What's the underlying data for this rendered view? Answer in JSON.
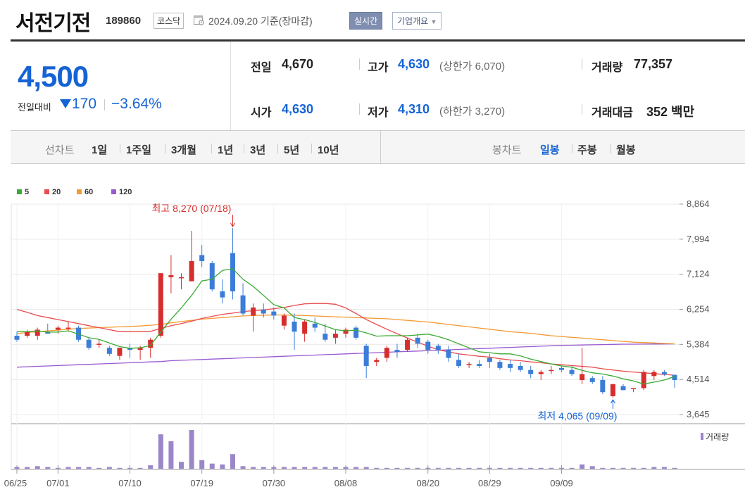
{
  "header": {
    "name": "서전기전",
    "code": "189860",
    "market": "코스닥",
    "date": "2024.09.20 기준(장마감)",
    "realtime": "실시간",
    "company_info": "기업개요"
  },
  "quote": {
    "price": "4,500",
    "change_label": "전일대비",
    "change": "170",
    "change_pct": "−3.64%",
    "prev_close_label": "전일",
    "prev_close": "4,670",
    "high_label": "고가",
    "high": "4,630",
    "upper_limit": "(상한가 6,070)",
    "volume_label": "거래량",
    "volume": "77,357",
    "open_label": "시가",
    "open": "4,630",
    "low_label": "저가",
    "low": "4,310",
    "lower_limit": "(하한가 3,270)",
    "amount_label": "거래대금",
    "amount": "352 백만"
  },
  "periods": {
    "line_label": "선차트",
    "line": [
      "1일",
      "1주일",
      "3개월",
      "1년",
      "3년",
      "5년",
      "10년"
    ],
    "candle_label": "봉차트",
    "candle": [
      "일봉",
      "주봉",
      "월봉"
    ],
    "candle_active": "일봉"
  },
  "colors": {
    "up": "#d62d2d",
    "down": "#3b7dd8",
    "ma5": "#3aaa35",
    "ma20": "#e84c4c",
    "ma60": "#f39a33",
    "ma120": "#9b59d0"
  },
  "chart_data": {
    "type": "candlestick",
    "legend": [
      {
        "name": "5",
        "color": "#3aaa35"
      },
      {
        "name": "20",
        "color": "#e84c4c"
      },
      {
        "name": "60",
        "color": "#f39a33"
      },
      {
        "name": "120",
        "color": "#9b59d0"
      }
    ],
    "y_ticks": [
      "8,864",
      "7,994",
      "7,124",
      "6,254",
      "5,384",
      "4,514",
      "3,645"
    ],
    "ylim": [
      3645,
      8864
    ],
    "x_ticks": [
      "06/25",
      "07/01",
      "07/10",
      "07/19",
      "07/30",
      "08/08",
      "08/20",
      "08/29",
      "09/09"
    ],
    "high_annotation": "최고 8,270 (07/18)",
    "low_annotation": "최저 4,065 (09/09)",
    "volume_label": "거래량",
    "candles": [
      {
        "o": 5600,
        "h": 5700,
        "l": 5450,
        "c": 5500
      },
      {
        "o": 5600,
        "h": 5750,
        "l": 5550,
        "c": 5700
      },
      {
        "o": 5600,
        "h": 5800,
        "l": 5500,
        "c": 5750
      },
      {
        "o": 5700,
        "h": 5900,
        "l": 5650,
        "c": 5650
      },
      {
        "o": 5750,
        "h": 5850,
        "l": 5650,
        "c": 5800
      },
      {
        "o": 5800,
        "h": 5950,
        "l": 5700,
        "c": 5800
      },
      {
        "o": 5800,
        "h": 5850,
        "l": 5450,
        "c": 5500
      },
      {
        "o": 5500,
        "h": 5550,
        "l": 5250,
        "c": 5300
      },
      {
        "o": 5400,
        "h": 5500,
        "l": 5300,
        "c": 5400
      },
      {
        "o": 5300,
        "h": 5350,
        "l": 5100,
        "c": 5150
      },
      {
        "o": 5100,
        "h": 5300,
        "l": 5000,
        "c": 5300
      },
      {
        "o": 5300,
        "h": 5400,
        "l": 5050,
        "c": 5250
      },
      {
        "o": 5250,
        "h": 5350,
        "l": 5000,
        "c": 5300
      },
      {
        "o": 5300,
        "h": 5550,
        "l": 5050,
        "c": 5500
      },
      {
        "o": 5600,
        "h": 7150,
        "l": 5550,
        "c": 7150
      },
      {
        "o": 7050,
        "h": 7600,
        "l": 6650,
        "c": 7100
      },
      {
        "o": 7050,
        "h": 7150,
        "l": 6750,
        "c": 7050
      },
      {
        "o": 6950,
        "h": 8200,
        "l": 6950,
        "c": 7450
      },
      {
        "o": 7600,
        "h": 7850,
        "l": 7300,
        "c": 7450
      },
      {
        "o": 7400,
        "h": 7450,
        "l": 6700,
        "c": 6750
      },
      {
        "o": 6700,
        "h": 7000,
        "l": 6400,
        "c": 6550
      },
      {
        "o": 7650,
        "h": 8270,
        "l": 6500,
        "c": 6700
      },
      {
        "o": 6600,
        "h": 6900,
        "l": 6100,
        "c": 6150
      },
      {
        "o": 6100,
        "h": 6400,
        "l": 5700,
        "c": 6300
      },
      {
        "o": 6250,
        "h": 6400,
        "l": 6050,
        "c": 6150
      },
      {
        "o": 6200,
        "h": 6300,
        "l": 6000,
        "c": 6100
      },
      {
        "o": 5850,
        "h": 6150,
        "l": 5750,
        "c": 6100
      },
      {
        "o": 5950,
        "h": 6150,
        "l": 5250,
        "c": 5700
      },
      {
        "o": 5650,
        "h": 6000,
        "l": 5450,
        "c": 5950
      },
      {
        "o": 5900,
        "h": 6050,
        "l": 5700,
        "c": 5800
      },
      {
        "o": 5650,
        "h": 5900,
        "l": 5450,
        "c": 5500
      },
      {
        "o": 5550,
        "h": 5750,
        "l": 5400,
        "c": 5650
      },
      {
        "o": 5650,
        "h": 5800,
        "l": 5550,
        "c": 5750
      },
      {
        "o": 5800,
        "h": 5850,
        "l": 5500,
        "c": 5550
      },
      {
        "o": 5350,
        "h": 5400,
        "l": 4550,
        "c": 4850
      },
      {
        "o": 4950,
        "h": 5050,
        "l": 4850,
        "c": 5000
      },
      {
        "o": 5050,
        "h": 5350,
        "l": 4950,
        "c": 5300
      },
      {
        "o": 5250,
        "h": 5400,
        "l": 5050,
        "c": 5200
      },
      {
        "o": 5250,
        "h": 5550,
        "l": 5200,
        "c": 5500
      },
      {
        "o": 5550,
        "h": 5650,
        "l": 5300,
        "c": 5400
      },
      {
        "o": 5450,
        "h": 5500,
        "l": 5150,
        "c": 5250
      },
      {
        "o": 5350,
        "h": 5400,
        "l": 5150,
        "c": 5250
      },
      {
        "o": 5250,
        "h": 5350,
        "l": 4950,
        "c": 5050
      },
      {
        "o": 5000,
        "h": 5150,
        "l": 4800,
        "c": 4850
      },
      {
        "o": 4900,
        "h": 4950,
        "l": 4800,
        "c": 4900
      },
      {
        "o": 4900,
        "h": 5000,
        "l": 4800,
        "c": 4850
      },
      {
        "o": 5050,
        "h": 5150,
        "l": 4800,
        "c": 4950
      },
      {
        "o": 4950,
        "h": 5000,
        "l": 4750,
        "c": 4800
      },
      {
        "o": 4900,
        "h": 5000,
        "l": 4700,
        "c": 4800
      },
      {
        "o": 4850,
        "h": 4950,
        "l": 4700,
        "c": 4750
      },
      {
        "o": 4750,
        "h": 4850,
        "l": 4550,
        "c": 4650
      },
      {
        "o": 4650,
        "h": 4750,
        "l": 4500,
        "c": 4700
      },
      {
        "o": 4750,
        "h": 4850,
        "l": 4650,
        "c": 4750
      },
      {
        "o": 4800,
        "h": 4850,
        "l": 4700,
        "c": 4750
      },
      {
        "o": 4750,
        "h": 4850,
        "l": 4600,
        "c": 4650
      },
      {
        "o": 4500,
        "h": 5300,
        "l": 4400,
        "c": 4650
      },
      {
        "o": 4550,
        "h": 4600,
        "l": 4400,
        "c": 4450
      },
      {
        "o": 4500,
        "h": 4600,
        "l": 4150,
        "c": 4200
      },
      {
        "o": 4100,
        "h": 4400,
        "l": 4065,
        "c": 4400
      },
      {
        "o": 4350,
        "h": 4400,
        "l": 4250,
        "c": 4250
      },
      {
        "o": 4300,
        "h": 4300,
        "l": 4200,
        "c": 4300
      },
      {
        "o": 4300,
        "h": 4750,
        "l": 4250,
        "c": 4700
      },
      {
        "o": 4600,
        "h": 4750,
        "l": 4500,
        "c": 4700
      },
      {
        "o": 4700,
        "h": 4750,
        "l": 4600,
        "c": 4650
      },
      {
        "o": 4630,
        "h": 4630,
        "l": 4310,
        "c": 4500
      }
    ],
    "ma5": [
      5700,
      5700,
      5720,
      5690,
      5690,
      5720,
      5640,
      5550,
      5510,
      5420,
      5330,
      5290,
      5300,
      5360,
      5690,
      6010,
      6290,
      6600,
      6960,
      7000,
      7220,
      7260,
      7000,
      6820,
      6600,
      6370,
      6290,
      6050,
      6000,
      5930,
      5840,
      5750,
      5720,
      5740,
      5670,
      5590,
      5600,
      5600,
      5600,
      5620,
      5640,
      5580,
      5500,
      5400,
      5300,
      5200,
      5180,
      5150,
      5150,
      5100,
      5020,
      4960,
      4900,
      4850,
      4820,
      4740,
      4680,
      4650,
      4600,
      4530,
      4480,
      4400,
      4450,
      4500,
      4590
    ],
    "ma20": [
      6250,
      6180,
      6100,
      6050,
      6000,
      5950,
      5900,
      5850,
      5800,
      5750,
      5700,
      5700,
      5700,
      5710,
      5780,
      5850,
      5900,
      5960,
      6030,
      6080,
      6130,
      6160,
      6200,
      6220,
      6240,
      6270,
      6300,
      6350,
      6390,
      6400,
      6400,
      6380,
      6290,
      6150,
      6000,
      5880,
      5760,
      5650,
      5540,
      5440,
      5340,
      5250,
      5200,
      5150,
      5120,
      5090,
      5070,
      5030,
      5000,
      4980,
      4950,
      4930,
      4900,
      4880,
      4860,
      4840,
      4820,
      4780,
      4750,
      4720,
      4700,
      4680,
      4660,
      4640,
      4620
    ],
    "ma60": [
      5650,
      5680,
      5700,
      5720,
      5740,
      5760,
      5780,
      5790,
      5800,
      5810,
      5820,
      5830,
      5840,
      5860,
      5880,
      5920,
      5950,
      5980,
      6010,
      6030,
      6050,
      6070,
      6090,
      6100,
      6110,
      6115,
      6115,
      6110,
      6100,
      6090,
      6080,
      6070,
      6060,
      6050,
      6040,
      6030,
      6020,
      6000,
      5980,
      5960,
      5940,
      5910,
      5880,
      5850,
      5820,
      5790,
      5760,
      5730,
      5700,
      5680,
      5660,
      5630,
      5600,
      5580,
      5560,
      5540,
      5520,
      5500,
      5480,
      5460,
      5440,
      5430,
      5420,
      5410,
      5400
    ],
    "ma120": [
      4820,
      4830,
      4840,
      4850,
      4860,
      4870,
      4880,
      4890,
      4900,
      4910,
      4920,
      4930,
      4940,
      4950,
      4960,
      4980,
      4990,
      5000,
      5010,
      5020,
      5030,
      5040,
      5050,
      5060,
      5070,
      5080,
      5090,
      5100,
      5110,
      5120,
      5130,
      5140,
      5150,
      5160,
      5170,
      5180,
      5190,
      5200,
      5210,
      5220,
      5230,
      5240,
      5250,
      5260,
      5270,
      5280,
      5290,
      5300,
      5310,
      5320,
      5330,
      5340,
      5350,
      5360,
      5365,
      5370,
      5375,
      5380,
      5385,
      5390,
      5390,
      5392,
      5394,
      5396,
      5398
    ],
    "volume": [
      2,
      2,
      3,
      2,
      1,
      2,
      2,
      2,
      1,
      2,
      1,
      1,
      1,
      4,
      40,
      32,
      8,
      45,
      10,
      6,
      5,
      17,
      3,
      2,
      2,
      2,
      2,
      2,
      2,
      2,
      2,
      2,
      2,
      2,
      2,
      1,
      1,
      1,
      1,
      1,
      1,
      1,
      1,
      1,
      1,
      1,
      1,
      1,
      1,
      1,
      1,
      1,
      1,
      1,
      1,
      5,
      3,
      1,
      1,
      1,
      1,
      1,
      2,
      2,
      1
    ]
  }
}
